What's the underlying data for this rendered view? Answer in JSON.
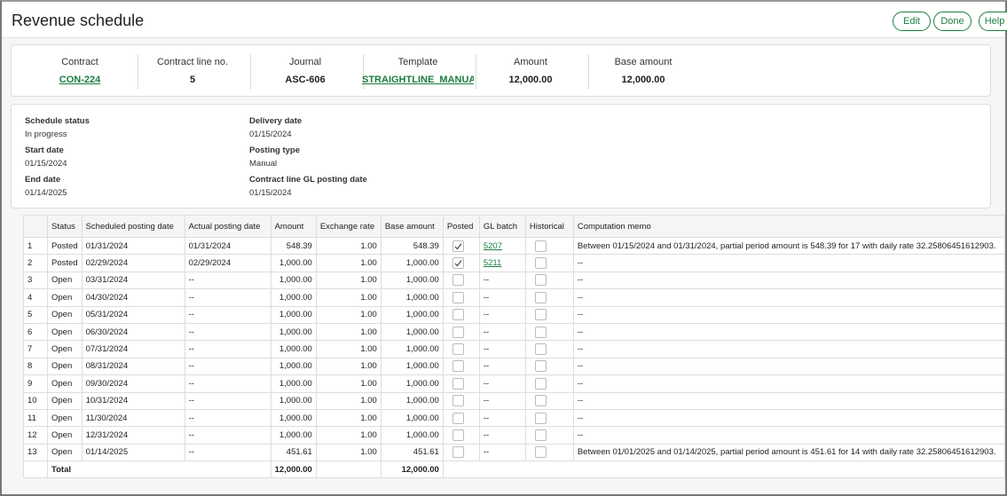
{
  "header": {
    "title": "Revenue schedule",
    "buttons": [
      "Edit",
      "Done",
      "Help"
    ]
  },
  "summary": [
    {
      "label": "Contract",
      "value": "CON-224",
      "link": true
    },
    {
      "label": "Contract line no.",
      "value": "5"
    },
    {
      "label": "Journal",
      "value": "ASC-606"
    },
    {
      "label": "Template",
      "value": "STRAIGHTLINE_MANUAL",
      "link": true
    },
    {
      "label": "Amount",
      "value": "12,000.00"
    },
    {
      "label": "Base amount",
      "value": "12,000.00"
    }
  ],
  "details": {
    "left": [
      {
        "label": "Schedule status",
        "value": "In progress"
      },
      {
        "label": "Start date",
        "value": "01/15/2024"
      },
      {
        "label": "End date",
        "value": "01/14/2025"
      }
    ],
    "right": [
      {
        "label": "Delivery date",
        "value": "01/15/2024"
      },
      {
        "label": "Posting type",
        "value": "Manual"
      },
      {
        "label": "Contract line GL posting date",
        "value": "01/15/2024"
      }
    ]
  },
  "table": {
    "columns": [
      "Status",
      "Scheduled posting date",
      "Actual posting date",
      "Amount",
      "Exchange rate",
      "Base amount",
      "Posted",
      "GL batch",
      "Historical",
      "Computation memo"
    ],
    "rows": [
      {
        "no": "1",
        "status": "Posted",
        "scheduled": "01/31/2024",
        "actual": "01/31/2024",
        "amount": "548.39",
        "rate": "1.00",
        "base": "548.39",
        "posted": true,
        "batch": "5207",
        "historical": false,
        "memo": "Between 01/15/2024 and 01/31/2024, partial period amount is 548.39 for 17 with daily rate 32.25806451612903."
      },
      {
        "no": "2",
        "status": "Posted",
        "scheduled": "02/29/2024",
        "actual": "02/29/2024",
        "amount": "1,000.00",
        "rate": "1.00",
        "base": "1,000.00",
        "posted": true,
        "batch": "5211",
        "historical": false,
        "memo": "--"
      },
      {
        "no": "3",
        "status": "Open",
        "scheduled": "03/31/2024",
        "actual": "--",
        "amount": "1,000.00",
        "rate": "1.00",
        "base": "1,000.00",
        "posted": false,
        "batch": "--",
        "historical": false,
        "memo": "--"
      },
      {
        "no": "4",
        "status": "Open",
        "scheduled": "04/30/2024",
        "actual": "--",
        "amount": "1,000.00",
        "rate": "1.00",
        "base": "1,000.00",
        "posted": false,
        "batch": "--",
        "historical": false,
        "memo": "--"
      },
      {
        "no": "5",
        "status": "Open",
        "scheduled": "05/31/2024",
        "actual": "--",
        "amount": "1,000.00",
        "rate": "1.00",
        "base": "1,000.00",
        "posted": false,
        "batch": "--",
        "historical": false,
        "memo": "--"
      },
      {
        "no": "6",
        "status": "Open",
        "scheduled": "06/30/2024",
        "actual": "--",
        "amount": "1,000.00",
        "rate": "1.00",
        "base": "1,000.00",
        "posted": false,
        "batch": "--",
        "historical": false,
        "memo": "--"
      },
      {
        "no": "7",
        "status": "Open",
        "scheduled": "07/31/2024",
        "actual": "--",
        "amount": "1,000.00",
        "rate": "1.00",
        "base": "1,000.00",
        "posted": false,
        "batch": "--",
        "historical": false,
        "memo": "--"
      },
      {
        "no": "8",
        "status": "Open",
        "scheduled": "08/31/2024",
        "actual": "--",
        "amount": "1,000.00",
        "rate": "1.00",
        "base": "1,000.00",
        "posted": false,
        "batch": "--",
        "historical": false,
        "memo": "--"
      },
      {
        "no": "9",
        "status": "Open",
        "scheduled": "09/30/2024",
        "actual": "--",
        "amount": "1,000.00",
        "rate": "1.00",
        "base": "1,000.00",
        "posted": false,
        "batch": "--",
        "historical": false,
        "memo": "--"
      },
      {
        "no": "10",
        "status": "Open",
        "scheduled": "10/31/2024",
        "actual": "--",
        "amount": "1,000.00",
        "rate": "1.00",
        "base": "1,000.00",
        "posted": false,
        "batch": "--",
        "historical": false,
        "memo": "--"
      },
      {
        "no": "11",
        "status": "Open",
        "scheduled": "11/30/2024",
        "actual": "--",
        "amount": "1,000.00",
        "rate": "1.00",
        "base": "1,000.00",
        "posted": false,
        "batch": "--",
        "historical": false,
        "memo": "--"
      },
      {
        "no": "12",
        "status": "Open",
        "scheduled": "12/31/2024",
        "actual": "--",
        "amount": "1,000.00",
        "rate": "1.00",
        "base": "1,000.00",
        "posted": false,
        "batch": "--",
        "historical": false,
        "memo": "--"
      },
      {
        "no": "13",
        "status": "Open",
        "scheduled": "01/14/2025",
        "actual": "--",
        "amount": "451.61",
        "rate": "1.00",
        "base": "451.61",
        "posted": false,
        "batch": "--",
        "historical": false,
        "memo": "Between 01/01/2025 and 01/14/2025, partial period amount is 451.61 for 14 with daily rate 32.25806451612903."
      }
    ],
    "total": {
      "label": "Total",
      "amount": "12,000.00",
      "base": "12,000.00"
    }
  }
}
